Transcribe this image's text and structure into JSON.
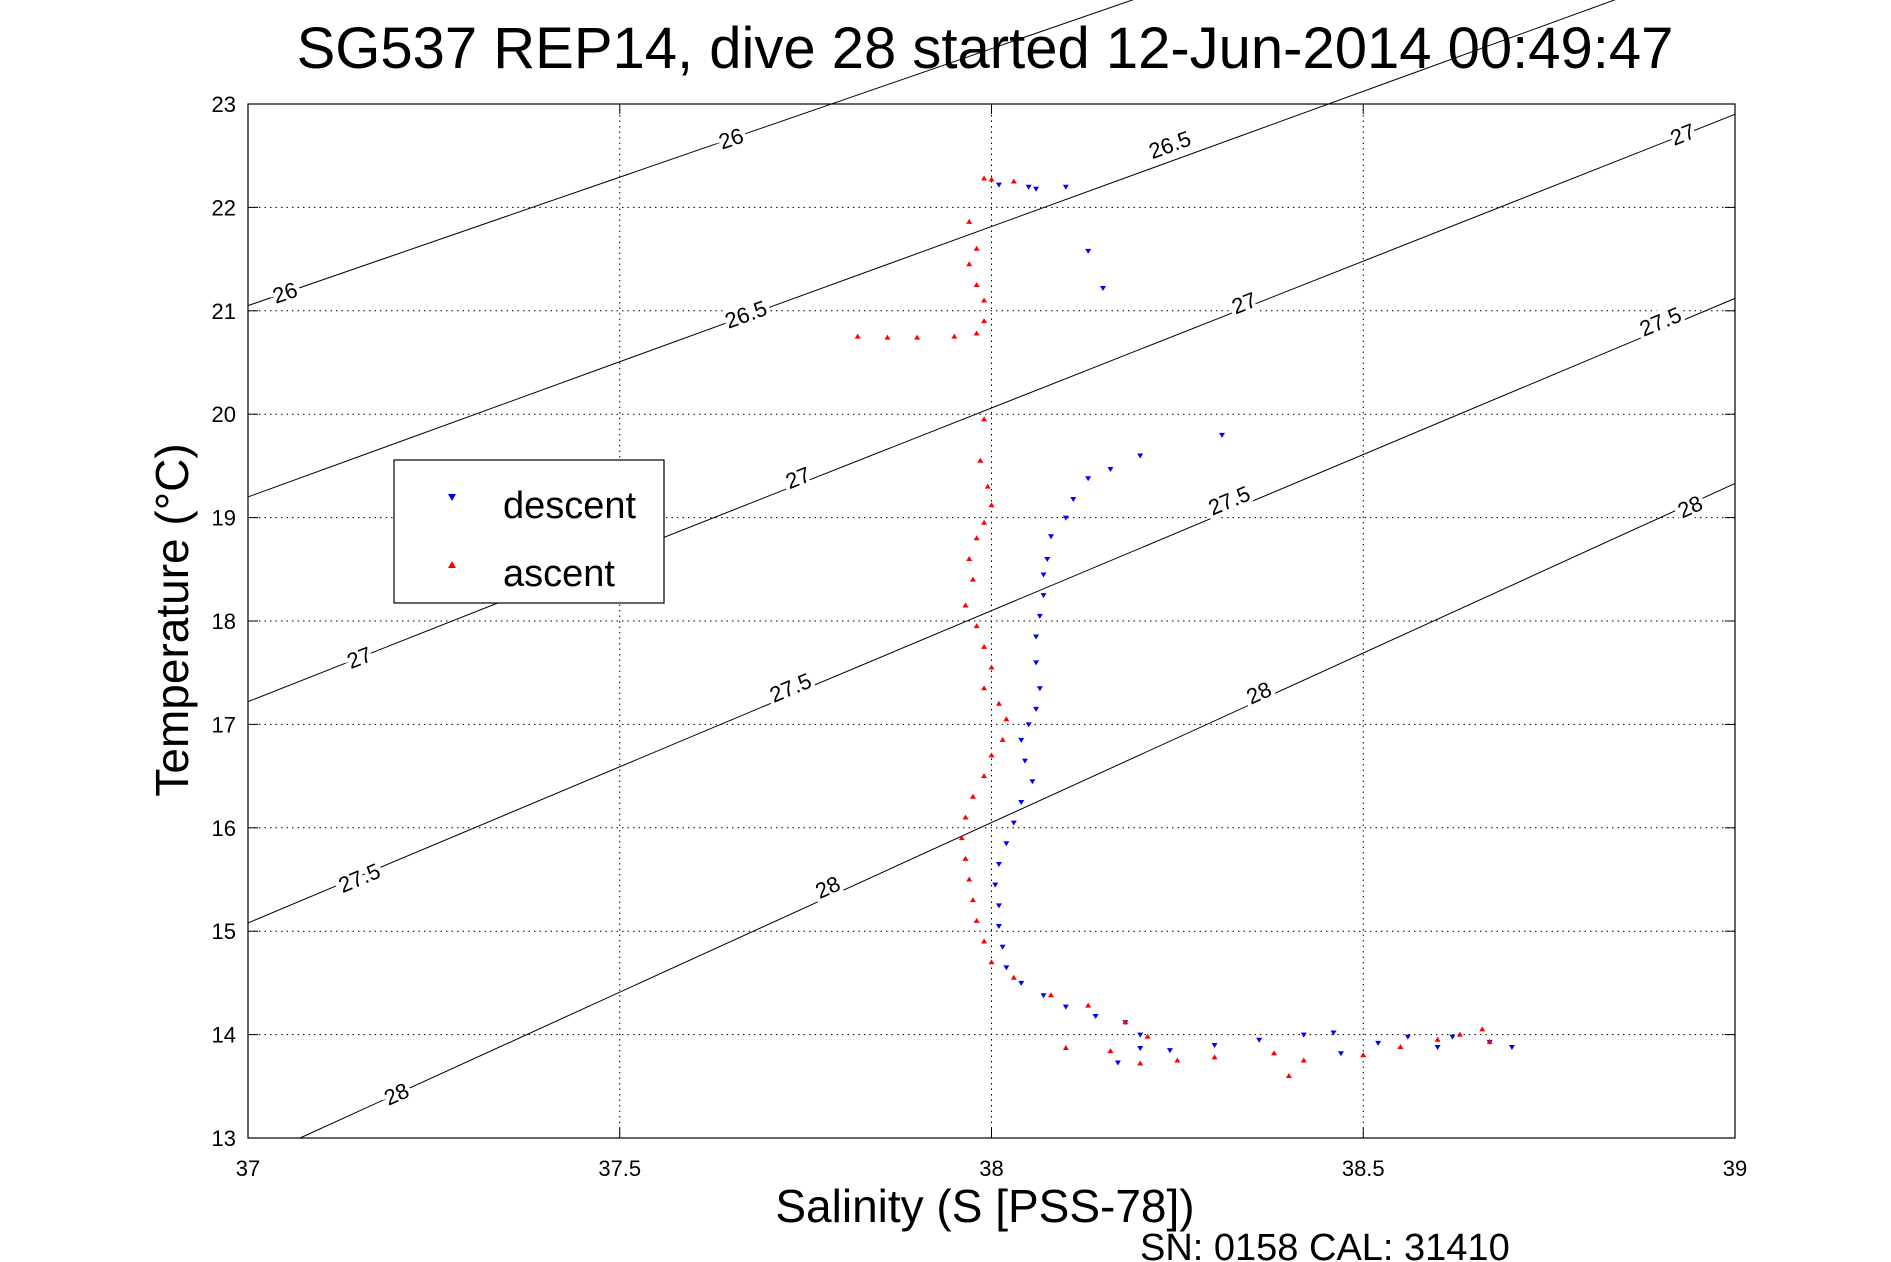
{
  "footer_text": "SN: 0158  CAL: 31410",
  "colors": {
    "descent": "#0000ff",
    "ascent": "#ff0000",
    "axes": "#000000",
    "grid": "#000000"
  },
  "chart_data": {
    "type": "scatter",
    "title": "SG537 REP14, dive 28 started 12-Jun-2014 00:49:47",
    "xlabel": "Salinity (S [PSS-78])",
    "ylabel": "Temperature (°C)",
    "xlim": [
      37,
      39
    ],
    "ylim": [
      13,
      23
    ],
    "xticks": [
      "37",
      "37.5",
      "38",
      "38.5",
      "39"
    ],
    "yticks": [
      "13",
      "14",
      "15",
      "16",
      "17",
      "18",
      "19",
      "20",
      "21",
      "22",
      "23"
    ],
    "grid": true,
    "legend_position": "upper-left",
    "contours": [
      {
        "label": "26",
        "points": [
          [
            37.0,
            21.05
          ],
          [
            39.0,
            26.02
          ]
        ],
        "labels_at": [
          [
            37.05,
            21.17
          ],
          [
            37.65,
            22.66
          ]
        ]
      },
      {
        "label": "26.5",
        "points": [
          [
            37.0,
            19.2
          ],
          [
            39.0,
            24.43
          ]
        ],
        "labels_at": [
          [
            37.67,
            20.96
          ],
          [
            38.24,
            22.6
          ]
        ]
      },
      {
        "label": "27",
        "points": [
          [
            37.0,
            17.22
          ],
          [
            39.0,
            22.9
          ]
        ],
        "labels_at": [
          [
            37.15,
            17.64
          ],
          [
            37.74,
            19.38
          ],
          [
            38.34,
            21.07
          ],
          [
            38.93,
            22.7
          ]
        ]
      },
      {
        "label": "27.5",
        "points": [
          [
            37.0,
            15.08
          ],
          [
            39.0,
            21.12
          ]
        ],
        "labels_at": [
          [
            37.15,
            15.51
          ],
          [
            37.73,
            17.35
          ],
          [
            38.32,
            19.16
          ],
          [
            38.9,
            20.89
          ]
        ]
      },
      {
        "label": "28",
        "points": [
          [
            37.07,
            13.0
          ],
          [
            39.0,
            19.33
          ]
        ],
        "labels_at": [
          [
            37.2,
            13.42
          ],
          [
            37.78,
            15.42
          ],
          [
            38.36,
            17.3
          ],
          [
            38.94,
            19.1
          ]
        ]
      }
    ],
    "series": [
      {
        "name": "descent",
        "marker": "triangle-down",
        "points": [
          [
            38.01,
            22.22
          ],
          [
            38.05,
            22.2
          ],
          [
            38.06,
            22.18
          ],
          [
            38.1,
            22.2
          ],
          [
            38.13,
            21.58
          ],
          [
            38.15,
            21.22
          ],
          [
            38.31,
            19.8
          ],
          [
            38.2,
            19.6
          ],
          [
            38.16,
            19.47
          ],
          [
            38.13,
            19.38
          ],
          [
            38.11,
            19.18
          ],
          [
            38.1,
            19.0
          ],
          [
            38.08,
            18.82
          ],
          [
            38.075,
            18.6
          ],
          [
            38.07,
            18.45
          ],
          [
            38.07,
            18.25
          ],
          [
            38.065,
            18.05
          ],
          [
            38.06,
            17.85
          ],
          [
            38.06,
            17.6
          ],
          [
            38.065,
            17.35
          ],
          [
            38.06,
            17.15
          ],
          [
            38.05,
            17.0
          ],
          [
            38.04,
            16.85
          ],
          [
            38.045,
            16.65
          ],
          [
            38.055,
            16.45
          ],
          [
            38.04,
            16.25
          ],
          [
            38.03,
            16.05
          ],
          [
            38.02,
            15.85
          ],
          [
            38.01,
            15.65
          ],
          [
            38.005,
            15.45
          ],
          [
            38.01,
            15.25
          ],
          [
            38.01,
            15.05
          ],
          [
            38.015,
            14.85
          ],
          [
            38.02,
            14.65
          ],
          [
            38.04,
            14.5
          ],
          [
            38.07,
            14.38
          ],
          [
            38.1,
            14.27
          ],
          [
            38.14,
            14.18
          ],
          [
            38.18,
            14.12
          ],
          [
            38.2,
            14.0
          ],
          [
            38.2,
            13.87
          ],
          [
            38.17,
            13.73
          ],
          [
            38.24,
            13.85
          ],
          [
            38.3,
            13.9
          ],
          [
            38.36,
            13.95
          ],
          [
            38.42,
            14.0
          ],
          [
            38.46,
            14.02
          ],
          [
            38.47,
            13.82
          ],
          [
            38.52,
            13.92
          ],
          [
            38.56,
            13.98
          ],
          [
            38.6,
            13.88
          ],
          [
            38.62,
            13.98
          ],
          [
            38.67,
            13.93
          ],
          [
            38.7,
            13.88
          ]
        ]
      },
      {
        "name": "ascent",
        "marker": "triangle-up",
        "points": [
          [
            37.99,
            22.28
          ],
          [
            38.0,
            22.27
          ],
          [
            38.03,
            22.25
          ],
          [
            37.97,
            21.86
          ],
          [
            37.98,
            21.6
          ],
          [
            37.97,
            21.45
          ],
          [
            37.98,
            21.25
          ],
          [
            37.99,
            21.1
          ],
          [
            37.99,
            20.9
          ],
          [
            37.82,
            20.75
          ],
          [
            37.86,
            20.74
          ],
          [
            37.9,
            20.74
          ],
          [
            37.95,
            20.75
          ],
          [
            37.98,
            20.78
          ],
          [
            37.99,
            19.95
          ],
          [
            37.985,
            19.55
          ],
          [
            37.995,
            19.3
          ],
          [
            38.0,
            19.12
          ],
          [
            37.99,
            18.95
          ],
          [
            37.98,
            18.8
          ],
          [
            37.97,
            18.6
          ],
          [
            37.975,
            18.4
          ],
          [
            37.965,
            18.15
          ],
          [
            37.98,
            17.95
          ],
          [
            37.99,
            17.75
          ],
          [
            38.0,
            17.55
          ],
          [
            37.99,
            17.35
          ],
          [
            38.01,
            17.2
          ],
          [
            38.02,
            17.05
          ],
          [
            38.015,
            16.85
          ],
          [
            38.0,
            16.7
          ],
          [
            37.99,
            16.5
          ],
          [
            37.975,
            16.3
          ],
          [
            37.965,
            16.1
          ],
          [
            37.96,
            15.9
          ],
          [
            37.965,
            15.7
          ],
          [
            37.97,
            15.5
          ],
          [
            37.975,
            15.3
          ],
          [
            37.98,
            15.1
          ],
          [
            37.99,
            14.9
          ],
          [
            38.0,
            14.7
          ],
          [
            38.03,
            14.55
          ],
          [
            38.08,
            14.38
          ],
          [
            38.13,
            14.28
          ],
          [
            38.18,
            14.12
          ],
          [
            38.21,
            13.98
          ],
          [
            38.1,
            13.87
          ],
          [
            38.16,
            13.84
          ],
          [
            38.2,
            13.72
          ],
          [
            38.25,
            13.75
          ],
          [
            38.3,
            13.78
          ],
          [
            38.38,
            13.82
          ],
          [
            38.4,
            13.6
          ],
          [
            38.42,
            13.75
          ],
          [
            38.5,
            13.8
          ],
          [
            38.55,
            13.88
          ],
          [
            38.6,
            13.95
          ],
          [
            38.63,
            14.0
          ],
          [
            38.66,
            14.05
          ],
          [
            38.67,
            13.93
          ]
        ]
      }
    ]
  }
}
